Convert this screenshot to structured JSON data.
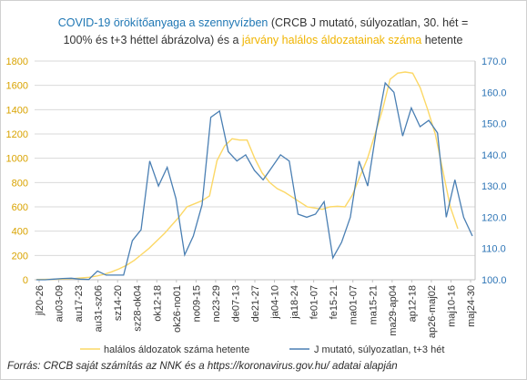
{
  "colors": {
    "title_blue": "#1f77b4",
    "title_text": "#333333",
    "title_yellow": "#f0b400",
    "deaths": "#fcd866",
    "j_index": "#4a7fb3",
    "left_axis_text": "#d9a300",
    "right_axis_text": "#2e75b6",
    "grid": "#d9d9d9"
  },
  "title": {
    "line1_blue": "COVID-19 örökítőanyaga a szennyvízben",
    "line1_rest": " (CRCB J mutató, súlyozatlan, 30. hét =",
    "line2_start": "100% és t+3 héttel ábrázolva) és a ",
    "line2_yellow": "járvány halálos áldozatainak száma",
    "line2_end": " hetente"
  },
  "legend": {
    "deaths_label": "halálos áldozatok száma hetente",
    "j_label": "J mutató, súlyozatlan, t+3 hét"
  },
  "source": "Forrás: CRCB saját számítás az NNK és a https://koronavirus.gov.hu/ adatai alapján",
  "chart_data": {
    "type": "line",
    "x_tick_labels": [
      "jl20-26",
      "au03-09",
      "au17-23",
      "au31-sz06",
      "sz14-20",
      "sz28-ok04",
      "ok12-18",
      "ok26-no01",
      "no09-15",
      "no23-29",
      "de07-13",
      "de21-27",
      "ja04-10",
      "ja18-24",
      "fe01-07",
      "fe15-21",
      "ma01-07",
      "ma15-21",
      "ma29-ap04",
      "ap12-18",
      "ap26-maj02",
      "maj10-16",
      "maj24-30"
    ],
    "y_left": {
      "min": 0,
      "max": 1800,
      "ticks": [
        0,
        200,
        400,
        600,
        800,
        1000,
        1200,
        1400,
        1600,
        1800
      ]
    },
    "y_right": {
      "min": 100.0,
      "max": 170.0,
      "ticks": [
        "100.0",
        "110.0",
        "120.0",
        "130.0",
        "140.0",
        "150.0",
        "160.0",
        "170.0"
      ]
    },
    "grid": "horizontal",
    "legend_position": "bottom",
    "series": [
      {
        "name": "halálos áldozatok száma hetente",
        "axis": "left",
        "values": [
          2,
          3,
          4,
          5,
          8,
          10,
          15,
          20,
          30,
          45,
          65,
          90,
          120,
          160,
          210,
          260,
          320,
          380,
          450,
          520,
          600,
          625,
          650,
          690,
          980,
          1100,
          1160,
          1150,
          1150,
          1000,
          880,
          800,
          750,
          720,
          680,
          640,
          600,
          590,
          580,
          600,
          605,
          600,
          700,
          850,
          1000,
          1200,
          1400,
          1650,
          1700,
          1710,
          1700,
          1580,
          1400,
          1200,
          900,
          600,
          420
        ]
      },
      {
        "name": "J mutató, súlyozatlan, t+3 hét",
        "axis": "right",
        "values": [
          100.0,
          100.0,
          100.2,
          100.4,
          100.5,
          100.2,
          100.1,
          102.8,
          101.5,
          101.5,
          101.5,
          112.5,
          116.0,
          138.0,
          130.0,
          136.0,
          126.0,
          108.0,
          114.0,
          124.0,
          152.0,
          154.0,
          141.0,
          138.0,
          140.0,
          135.0,
          132.0,
          136.0,
          140.0,
          138.0,
          121.0,
          120.0,
          121.0,
          125.0,
          107.0,
          112.0,
          120.0,
          138.0,
          130.0,
          148.0,
          163.0,
          160.0,
          146.0,
          155.0,
          149.0,
          151.0,
          147.0,
          120.0,
          132.0,
          120.0,
          114.0
        ]
      }
    ]
  }
}
